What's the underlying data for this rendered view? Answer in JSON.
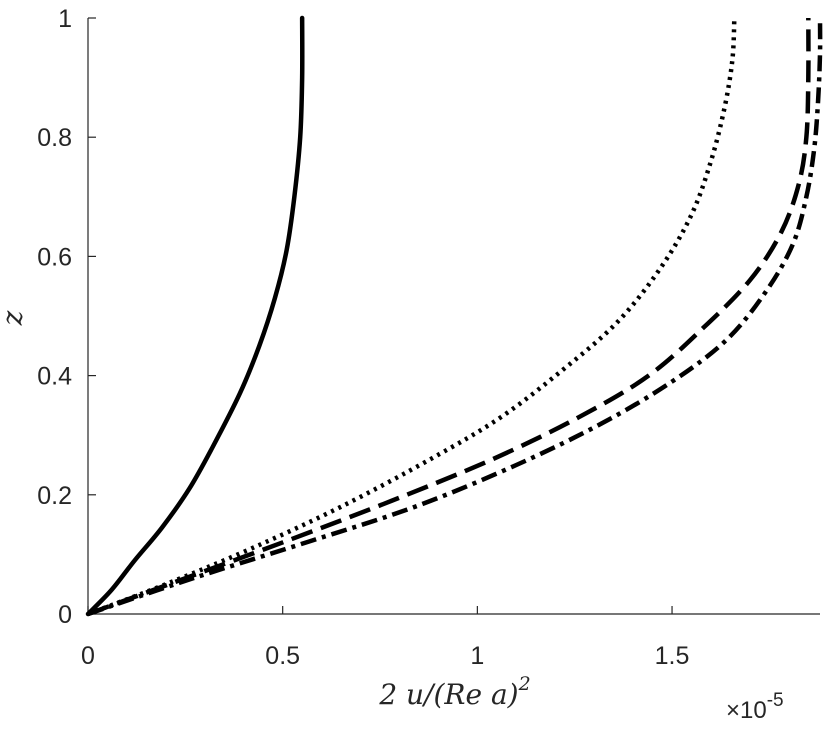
{
  "chart_data": {
    "type": "line",
    "xlabel": "2 u/(Re a)",
    "xlabel_sup": "2",
    "ylabel": "z",
    "x_exponent_label": "×10",
    "x_exponent_power": "-5",
    "x_multiplier": 1e-05,
    "xlim": [
      0,
      1.88
    ],
    "ylim": [
      0,
      1
    ],
    "xticks": [
      0,
      0.5,
      1,
      1.5
    ],
    "xtick_labels": [
      "0",
      "0.5",
      "1",
      "1.5"
    ],
    "yticks": [
      0,
      0.2,
      0.4,
      0.6,
      0.8,
      1
    ],
    "ytick_labels": [
      "0",
      "0.2",
      "0.4",
      "0.6",
      "0.8",
      "1"
    ],
    "grid": false,
    "legend": "none",
    "series": [
      {
        "style": "solid",
        "points": [
          [
            0,
            0
          ],
          [
            0.06,
            0.04
          ],
          [
            0.12,
            0.09
          ],
          [
            0.19,
            0.145
          ],
          [
            0.26,
            0.21
          ],
          [
            0.32,
            0.28
          ],
          [
            0.39,
            0.37
          ],
          [
            0.44,
            0.45
          ],
          [
            0.48,
            0.53
          ],
          [
            0.51,
            0.61
          ],
          [
            0.53,
            0.7
          ],
          [
            0.545,
            0.8
          ],
          [
            0.55,
            0.9
          ],
          [
            0.55,
            1.0
          ]
        ]
      },
      {
        "style": "dotted",
        "points": [
          [
            0,
            0
          ],
          [
            0.2,
            0.05
          ],
          [
            0.42,
            0.11
          ],
          [
            0.65,
            0.18
          ],
          [
            0.88,
            0.26
          ],
          [
            1.06,
            0.33
          ],
          [
            1.22,
            0.41
          ],
          [
            1.36,
            0.49
          ],
          [
            1.47,
            0.58
          ],
          [
            1.55,
            0.67
          ],
          [
            1.6,
            0.76
          ],
          [
            1.635,
            0.85
          ],
          [
            1.655,
            0.93
          ],
          [
            1.66,
            1.0
          ]
        ]
      },
      {
        "style": "dashed",
        "points": [
          [
            0,
            0
          ],
          [
            0.25,
            0.06
          ],
          [
            0.52,
            0.125
          ],
          [
            0.78,
            0.19
          ],
          [
            1.04,
            0.26
          ],
          [
            1.26,
            0.33
          ],
          [
            1.44,
            0.4
          ],
          [
            1.58,
            0.48
          ],
          [
            1.7,
            0.56
          ],
          [
            1.78,
            0.64
          ],
          [
            1.825,
            0.72
          ],
          [
            1.845,
            0.8
          ],
          [
            1.85,
            0.9
          ],
          [
            1.85,
            1.0
          ]
        ]
      },
      {
        "style": "dashdot",
        "points": [
          [
            0,
            0
          ],
          [
            0.27,
            0.06
          ],
          [
            0.56,
            0.12
          ],
          [
            0.84,
            0.18
          ],
          [
            1.1,
            0.25
          ],
          [
            1.32,
            0.32
          ],
          [
            1.5,
            0.39
          ],
          [
            1.64,
            0.46
          ],
          [
            1.74,
            0.54
          ],
          [
            1.81,
            0.62
          ],
          [
            1.845,
            0.7
          ],
          [
            1.865,
            0.78
          ],
          [
            1.875,
            0.86
          ],
          [
            1.88,
            0.94
          ],
          [
            1.88,
            1.0
          ]
        ]
      }
    ]
  }
}
